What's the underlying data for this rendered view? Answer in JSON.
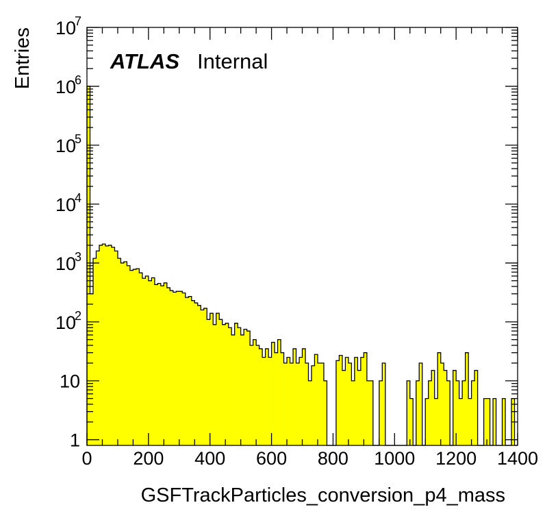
{
  "chart_data": {
    "type": "bar",
    "style": "histogram",
    "fill_color": "#ffff00",
    "line_color": "#000000",
    "xlabel": "GSFTrackParticles_conversion_p4_mass",
    "ylabel": "Entries",
    "label_main": "ATLAS",
    "label_sub": "Internal",
    "xlim": [
      0,
      1400
    ],
    "ylim": [
      0.8,
      10000000
    ],
    "yscale": "log",
    "grid": false,
    "x_ticks": [
      "0",
      "200",
      "400",
      "600",
      "800",
      "1000",
      "1200",
      "1400"
    ],
    "y_ticks": [
      {
        "base": "1",
        "exp": ""
      },
      {
        "base": "10",
        "exp": ""
      },
      {
        "base": "10",
        "exp": "2"
      },
      {
        "base": "10",
        "exp": "3"
      },
      {
        "base": "10",
        "exp": "4"
      },
      {
        "base": "10",
        "exp": "5"
      },
      {
        "base": "10",
        "exp": "6"
      },
      {
        "base": "10",
        "exp": "7"
      }
    ],
    "bin_width": 10,
    "values": [
      1000000,
      300,
      1200,
      1600,
      2000,
      2100,
      1950,
      2000,
      1850,
      1600,
      1200,
      1000,
      1050,
      900,
      750,
      780,
      800,
      680,
      550,
      600,
      500,
      560,
      430,
      450,
      410,
      460,
      380,
      340,
      320,
      330,
      330,
      310,
      260,
      270,
      230,
      210,
      190,
      160,
      170,
      110,
      140,
      90,
      140,
      110,
      90,
      95,
      80,
      60,
      95,
      80,
      60,
      75,
      70,
      40,
      50,
      40,
      35,
      25,
      35,
      25,
      45,
      30,
      50,
      30,
      20,
      25,
      20,
      35,
      20,
      25,
      35,
      20,
      10,
      18,
      28,
      20,
      20,
      10,
      0,
      0,
      0,
      22,
      27,
      15,
      25,
      20,
      10,
      25,
      15,
      25,
      30,
      10,
      10,
      0,
      0,
      10,
      20,
      0,
      0,
      0,
      0,
      0,
      0,
      0,
      10,
      5,
      0,
      10,
      20,
      0,
      5,
      10,
      15,
      5,
      30,
      20,
      15,
      10,
      0,
      15,
      10,
      5,
      10,
      30,
      5,
      10,
      15,
      0,
      0,
      5,
      5,
      0,
      5,
      0,
      0,
      5,
      0,
      0,
      5,
      0
    ]
  }
}
